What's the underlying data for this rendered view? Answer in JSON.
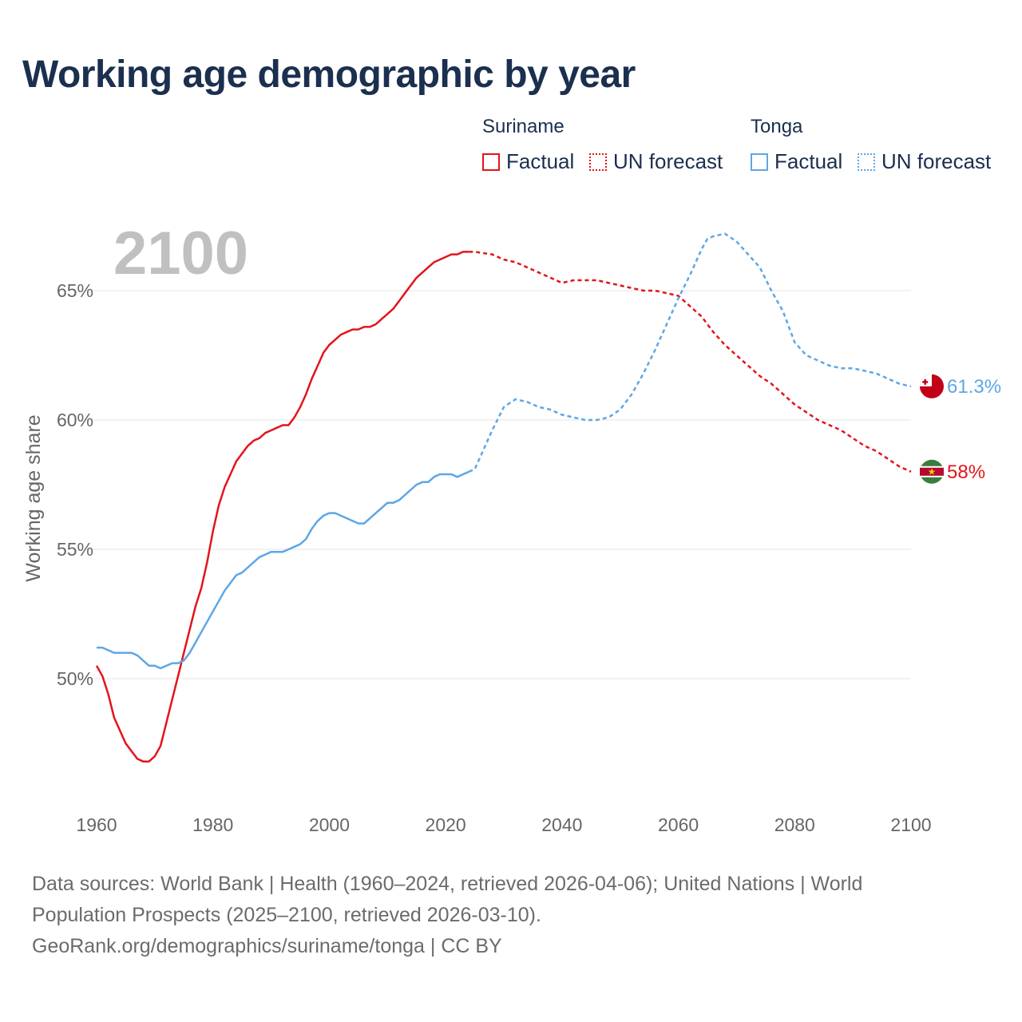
{
  "title": "Working age demographic by year",
  "legend": {
    "groups": [
      {
        "country": "Suriname",
        "color": "#e3141b",
        "items": [
          {
            "label": "Factual",
            "style": "solid"
          },
          {
            "label": "UN forecast",
            "style": "dotted"
          }
        ]
      },
      {
        "country": "Tonga",
        "color": "#5ea6e6",
        "items": [
          {
            "label": "Factual",
            "style": "solid"
          },
          {
            "label": "UN forecast",
            "style": "dotted"
          }
        ]
      }
    ]
  },
  "year_watermark": "2100",
  "sources": {
    "line1": "Data sources: World Bank | Health (1960–2024, retrieved 2026-04-06); United Nations | World",
    "line2": "Population Prospects (2025–2100, retrieved 2026-03-10).",
    "line3": "GeoRank.org/demographics/suriname/tonga | CC BY"
  },
  "chart_data": {
    "type": "line",
    "title": "Working age demographic by year",
    "xlabel": "",
    "ylabel": "Working age share",
    "xlim": [
      1960,
      2100
    ],
    "ylim": [
      45,
      70
    ],
    "x_ticks": [
      1960,
      1980,
      2000,
      2020,
      2040,
      2060,
      2080,
      2100
    ],
    "y_ticks": [
      50,
      55,
      60,
      65
    ],
    "y_tick_labels": [
      "50%",
      "55%",
      "60%",
      "65%"
    ],
    "grid": true,
    "factual_end_year": 2024,
    "series": [
      {
        "name": "Suriname",
        "color": "#e3141b",
        "end_label": "58%",
        "points": [
          [
            1960,
            50.5
          ],
          [
            1961,
            50.1
          ],
          [
            1962,
            49.4
          ],
          [
            1963,
            48.5
          ],
          [
            1964,
            48.0
          ],
          [
            1965,
            47.5
          ],
          [
            1966,
            47.2
          ],
          [
            1967,
            46.9
          ],
          [
            1968,
            46.8
          ],
          [
            1969,
            46.8
          ],
          [
            1970,
            47.0
          ],
          [
            1971,
            47.4
          ],
          [
            1972,
            48.3
          ],
          [
            1973,
            49.2
          ],
          [
            1974,
            50.1
          ],
          [
            1975,
            51.0
          ],
          [
            1976,
            51.9
          ],
          [
            1977,
            52.8
          ],
          [
            1978,
            53.5
          ],
          [
            1979,
            54.5
          ],
          [
            1980,
            55.7
          ],
          [
            1981,
            56.7
          ],
          [
            1982,
            57.4
          ],
          [
            1983,
            57.9
          ],
          [
            1984,
            58.4
          ],
          [
            1985,
            58.7
          ],
          [
            1986,
            59.0
          ],
          [
            1987,
            59.2
          ],
          [
            1988,
            59.3
          ],
          [
            1989,
            59.5
          ],
          [
            1990,
            59.6
          ],
          [
            1991,
            59.7
          ],
          [
            1992,
            59.8
          ],
          [
            1993,
            59.8
          ],
          [
            1994,
            60.1
          ],
          [
            1995,
            60.5
          ],
          [
            1996,
            61.0
          ],
          [
            1997,
            61.6
          ],
          [
            1998,
            62.1
          ],
          [
            1999,
            62.6
          ],
          [
            2000,
            62.9
          ],
          [
            2001,
            63.1
          ],
          [
            2002,
            63.3
          ],
          [
            2003,
            63.4
          ],
          [
            2004,
            63.5
          ],
          [
            2005,
            63.5
          ],
          [
            2006,
            63.6
          ],
          [
            2007,
            63.6
          ],
          [
            2008,
            63.7
          ],
          [
            2009,
            63.9
          ],
          [
            2010,
            64.1
          ],
          [
            2011,
            64.3
          ],
          [
            2012,
            64.6
          ],
          [
            2013,
            64.9
          ],
          [
            2014,
            65.2
          ],
          [
            2015,
            65.5
          ],
          [
            2016,
            65.7
          ],
          [
            2017,
            65.9
          ],
          [
            2018,
            66.1
          ],
          [
            2019,
            66.2
          ],
          [
            2020,
            66.3
          ],
          [
            2021,
            66.4
          ],
          [
            2022,
            66.4
          ],
          [
            2023,
            66.5
          ],
          [
            2024,
            66.5
          ],
          [
            2025,
            66.5
          ],
          [
            2028,
            66.4
          ],
          [
            2030,
            66.2
          ],
          [
            2032,
            66.1
          ],
          [
            2034,
            65.9
          ],
          [
            2036,
            65.7
          ],
          [
            2038,
            65.5
          ],
          [
            2040,
            65.3
          ],
          [
            2042,
            65.4
          ],
          [
            2044,
            65.4
          ],
          [
            2046,
            65.4
          ],
          [
            2048,
            65.3
          ],
          [
            2050,
            65.2
          ],
          [
            2052,
            65.1
          ],
          [
            2054,
            65.0
          ],
          [
            2056,
            65.0
          ],
          [
            2058,
            64.9
          ],
          [
            2060,
            64.8
          ],
          [
            2062,
            64.4
          ],
          [
            2064,
            64.0
          ],
          [
            2066,
            63.4
          ],
          [
            2068,
            62.9
          ],
          [
            2070,
            62.5
          ],
          [
            2072,
            62.1
          ],
          [
            2074,
            61.7
          ],
          [
            2076,
            61.4
          ],
          [
            2078,
            61.0
          ],
          [
            2080,
            60.6
          ],
          [
            2082,
            60.3
          ],
          [
            2084,
            60.0
          ],
          [
            2086,
            59.8
          ],
          [
            2088,
            59.6
          ],
          [
            2090,
            59.3
          ],
          [
            2092,
            59.0
          ],
          [
            2094,
            58.8
          ],
          [
            2096,
            58.5
          ],
          [
            2098,
            58.2
          ],
          [
            2100,
            58.0
          ]
        ]
      },
      {
        "name": "Tonga",
        "color": "#5ea6e6",
        "end_label": "61.3%",
        "points": [
          [
            1960,
            51.2
          ],
          [
            1961,
            51.2
          ],
          [
            1962,
            51.1
          ],
          [
            1963,
            51.0
          ],
          [
            1964,
            51.0
          ],
          [
            1965,
            51.0
          ],
          [
            1966,
            51.0
          ],
          [
            1967,
            50.9
          ],
          [
            1968,
            50.7
          ],
          [
            1969,
            50.5
          ],
          [
            1970,
            50.5
          ],
          [
            1971,
            50.4
          ],
          [
            1972,
            50.5
          ],
          [
            1973,
            50.6
          ],
          [
            1974,
            50.6
          ],
          [
            1975,
            50.7
          ],
          [
            1976,
            51.0
          ],
          [
            1977,
            51.4
          ],
          [
            1978,
            51.8
          ],
          [
            1979,
            52.2
          ],
          [
            1980,
            52.6
          ],
          [
            1981,
            53.0
          ],
          [
            1982,
            53.4
          ],
          [
            1983,
            53.7
          ],
          [
            1984,
            54.0
          ],
          [
            1985,
            54.1
          ],
          [
            1986,
            54.3
          ],
          [
            1987,
            54.5
          ],
          [
            1988,
            54.7
          ],
          [
            1989,
            54.8
          ],
          [
            1990,
            54.9
          ],
          [
            1991,
            54.9
          ],
          [
            1992,
            54.9
          ],
          [
            1993,
            55.0
          ],
          [
            1994,
            55.1
          ],
          [
            1995,
            55.2
          ],
          [
            1996,
            55.4
          ],
          [
            1997,
            55.8
          ],
          [
            1998,
            56.1
          ],
          [
            1999,
            56.3
          ],
          [
            2000,
            56.4
          ],
          [
            2001,
            56.4
          ],
          [
            2002,
            56.3
          ],
          [
            2003,
            56.2
          ],
          [
            2004,
            56.1
          ],
          [
            2005,
            56.0
          ],
          [
            2006,
            56.0
          ],
          [
            2007,
            56.2
          ],
          [
            2008,
            56.4
          ],
          [
            2009,
            56.6
          ],
          [
            2010,
            56.8
          ],
          [
            2011,
            56.8
          ],
          [
            2012,
            56.9
          ],
          [
            2013,
            57.1
          ],
          [
            2014,
            57.3
          ],
          [
            2015,
            57.5
          ],
          [
            2016,
            57.6
          ],
          [
            2017,
            57.6
          ],
          [
            2018,
            57.8
          ],
          [
            2019,
            57.9
          ],
          [
            2020,
            57.9
          ],
          [
            2021,
            57.9
          ],
          [
            2022,
            57.8
          ],
          [
            2023,
            57.9
          ],
          [
            2024,
            58.0
          ],
          [
            2025,
            58.1
          ],
          [
            2026,
            58.6
          ],
          [
            2028,
            59.6
          ],
          [
            2030,
            60.5
          ],
          [
            2032,
            60.8
          ],
          [
            2034,
            60.7
          ],
          [
            2036,
            60.5
          ],
          [
            2038,
            60.4
          ],
          [
            2040,
            60.2
          ],
          [
            2042,
            60.1
          ],
          [
            2044,
            60.0
          ],
          [
            2046,
            60.0
          ],
          [
            2048,
            60.1
          ],
          [
            2050,
            60.4
          ],
          [
            2052,
            61.0
          ],
          [
            2054,
            61.8
          ],
          [
            2056,
            62.7
          ],
          [
            2058,
            63.7
          ],
          [
            2060,
            64.7
          ],
          [
            2062,
            65.6
          ],
          [
            2064,
            66.6
          ],
          [
            2065,
            67.0
          ],
          [
            2066,
            67.1
          ],
          [
            2068,
            67.2
          ],
          [
            2070,
            66.9
          ],
          [
            2072,
            66.4
          ],
          [
            2074,
            65.9
          ],
          [
            2076,
            65.0
          ],
          [
            2078,
            64.2
          ],
          [
            2080,
            63.0
          ],
          [
            2082,
            62.5
          ],
          [
            2084,
            62.3
          ],
          [
            2086,
            62.1
          ],
          [
            2088,
            62.0
          ],
          [
            2090,
            62.0
          ],
          [
            2092,
            61.9
          ],
          [
            2094,
            61.8
          ],
          [
            2096,
            61.6
          ],
          [
            2098,
            61.4
          ],
          [
            2100,
            61.3
          ]
        ]
      }
    ]
  }
}
